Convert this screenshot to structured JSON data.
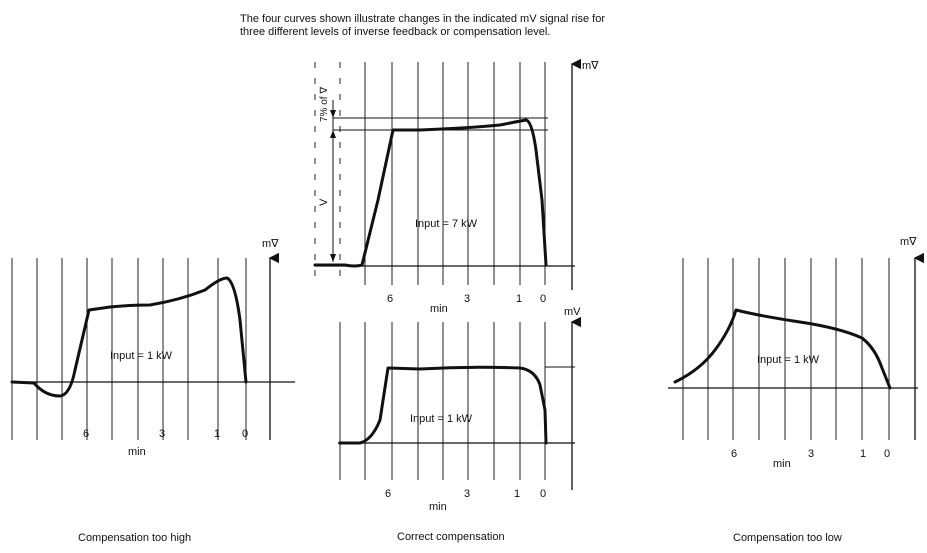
{
  "intro": {
    "line1": "The four curves shown illustrate changes in the indicated mV signal rise for",
    "line2": "three different levels of inverse feedback or compensation level."
  },
  "units": {
    "mv": "mV",
    "mv_special": "m∇",
    "time": "min"
  },
  "annotations": {
    "seven_pct": "7% of ∇",
    "v_label": "V"
  },
  "panels": [
    {
      "id": "too-high",
      "caption": "Compensation too high",
      "input": "Input = 1 kW",
      "ticks": [
        "6",
        "3",
        "1",
        "0"
      ],
      "xlabel": "min",
      "ylabel": "m∇"
    },
    {
      "id": "correct-top",
      "caption": "",
      "input": "Input = 7 kW",
      "ticks": [
        "6",
        "3",
        "1",
        "0"
      ],
      "xlabel": "min",
      "ylabel": "m∇"
    },
    {
      "id": "correct-bottom",
      "caption": "Correct compensation",
      "input": "Input = 1 kW",
      "ticks": [
        "6",
        "3",
        "1",
        "0"
      ],
      "xlabel": "min",
      "ylabel": "mV"
    },
    {
      "id": "too-low",
      "caption": "Compensation too low",
      "input": "Input = 1 kW",
      "ticks": [
        "6",
        "3",
        "1",
        "0"
      ],
      "xlabel": "min",
      "ylabel": "m∇"
    }
  ]
}
